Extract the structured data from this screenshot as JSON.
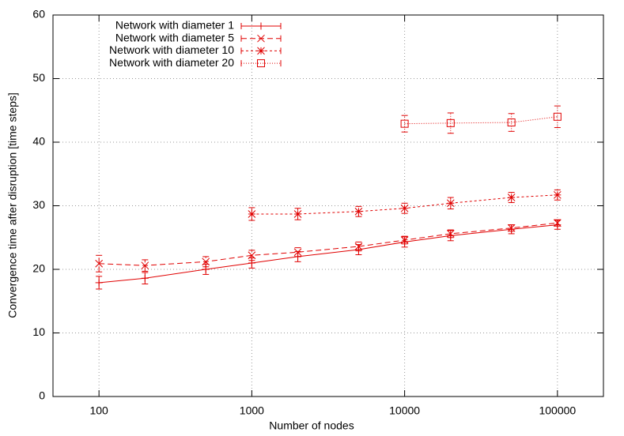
{
  "chart_data": {
    "type": "line",
    "xlabel": "Number of nodes",
    "ylabel": "Convergence time after disruption [time steps]",
    "x": [
      100,
      200,
      500,
      1000,
      2000,
      5000,
      10000,
      20000,
      50000,
      100000
    ],
    "xlim": [
      50,
      200000
    ],
    "xticks": [
      100,
      1000,
      10000,
      100000
    ],
    "xscale": "log",
    "ylim": [
      0,
      60
    ],
    "yticks": [
      0,
      10,
      20,
      30,
      40,
      50,
      60
    ],
    "grid": true,
    "legend": "upper-left",
    "series": [
      {
        "name": "Network with diameter 1",
        "color": "#e00000",
        "dash": "none",
        "marker": "plus",
        "values": [
          17.9,
          18.6,
          20.0,
          21.0,
          22.0,
          23.1,
          24.3,
          25.3,
          26.3,
          27.0
        ],
        "errors": [
          1.0,
          0.9,
          0.8,
          0.8,
          0.8,
          0.8,
          0.8,
          0.8,
          0.7,
          0.7
        ]
      },
      {
        "name": "Network with diameter 5",
        "color": "#e00000",
        "dash": "7,4",
        "marker": "cross",
        "values": [
          20.9,
          20.6,
          21.2,
          22.2,
          22.7,
          23.6,
          24.6,
          25.6,
          26.5,
          27.3
        ],
        "errors": [
          1.3,
          0.9,
          0.8,
          0.8,
          0.7,
          0.7,
          0.6,
          0.6,
          0.5,
          0.5
        ]
      },
      {
        "name": "Network with diameter 10",
        "color": "#e00000",
        "dash": "3,3",
        "marker": "star",
        "values": [
          null,
          null,
          null,
          28.7,
          28.7,
          29.1,
          29.6,
          30.4,
          31.3,
          31.7
        ],
        "errors": [
          null,
          null,
          null,
          1.0,
          0.9,
          0.8,
          0.8,
          0.9,
          0.8,
          0.8
        ]
      },
      {
        "name": "Network with diameter 20",
        "color": "#e00000",
        "dash": "1,2",
        "marker": "square",
        "values": [
          null,
          null,
          null,
          null,
          null,
          null,
          42.9,
          43.0,
          43.1,
          44.0
        ],
        "errors": [
          null,
          null,
          null,
          null,
          null,
          null,
          1.3,
          1.6,
          1.4,
          1.7
        ]
      }
    ]
  }
}
